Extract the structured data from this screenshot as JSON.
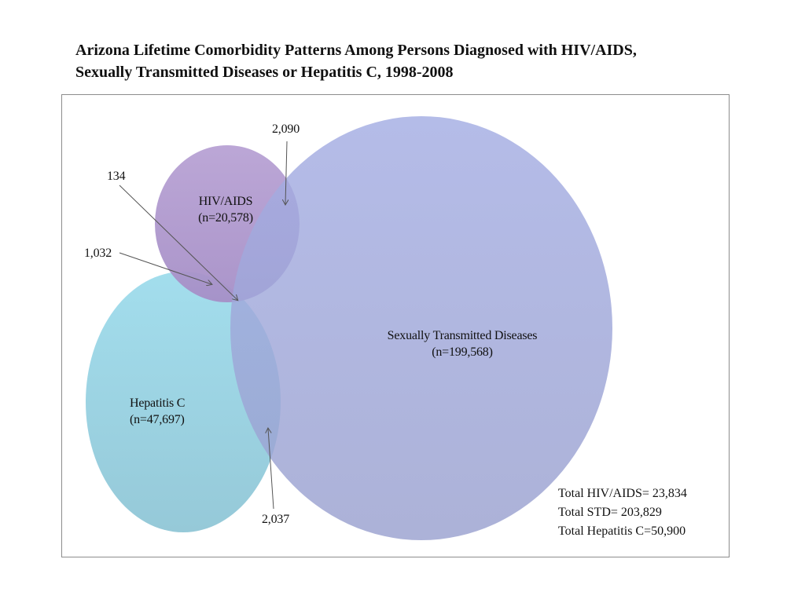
{
  "title": {
    "line1": "Arizona Lifetime Comorbidity Patterns Among Persons Diagnosed with HIV/AIDS,",
    "line2": "Sexually Transmitted Diseases or Hepatitis C, 1998-2008"
  },
  "sets": {
    "hiv": {
      "name": "HIV/AIDS",
      "n": "(n=20,578)",
      "color": "#a98fca"
    },
    "std": {
      "name": "Sexually Transmitted Diseases",
      "n": "(n=199,568)",
      "color": "#8b96d6"
    },
    "hcv": {
      "name": "Hepatitis C",
      "n": "(n=47,697)",
      "color": "#7ecde2"
    }
  },
  "overlaps": {
    "hiv_std": "2,090",
    "all_three": "134",
    "hiv_hcv": "1,032",
    "std_hcv": "2,037"
  },
  "totals": {
    "hiv": "Total HIV/AIDS= 23,834",
    "std": "Total STD= 203,829",
    "hcv": "Total Hepatitis C=50,900"
  }
}
